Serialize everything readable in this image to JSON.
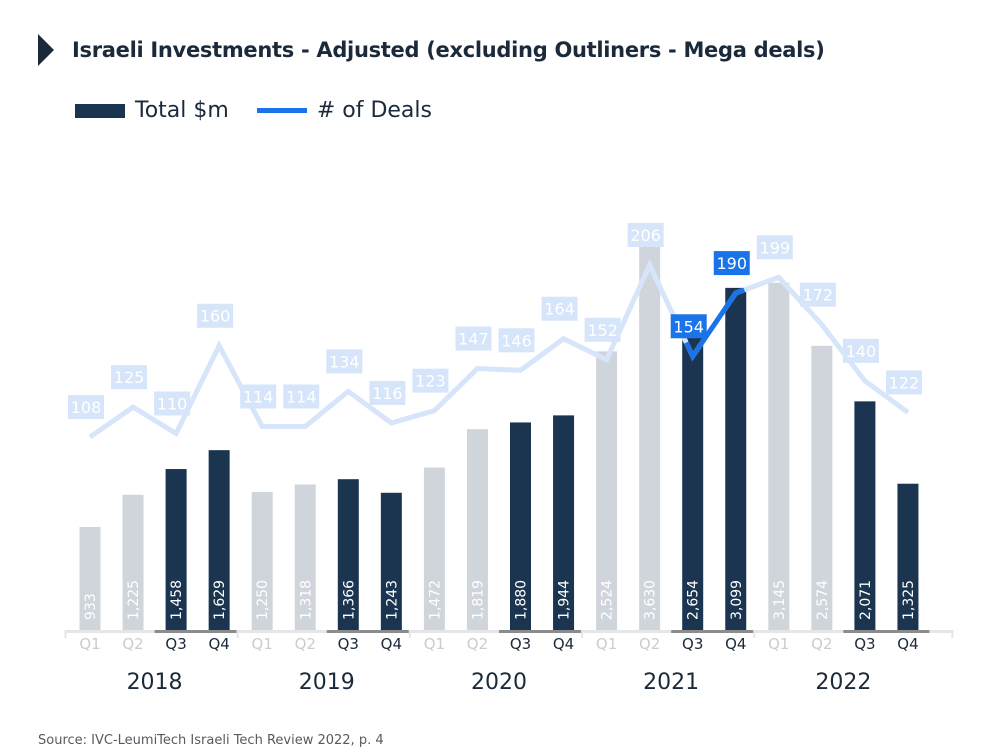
{
  "title": "Israeli Investments - Adjusted (excluding Outliners - Mega deals)",
  "legend": [
    {
      "label": "Total $m",
      "type": "bar",
      "color": "#1b3550"
    },
    {
      "label": "# of Deals",
      "type": "line",
      "color": "#1a73e8"
    }
  ],
  "source": "Source: IVC-LeumiTech Israeli Tech Review 2022, p. 4",
  "colors": {
    "bar_highlight": "#1b3550",
    "bar_muted": "#d0d5dc",
    "line_highlight": "#1a73e8",
    "line_muted": "#d6e5fa",
    "axis_muted": "#e6e6e6",
    "axis_highlight": "#8c8c8c",
    "text_dark": "#1b2a3a",
    "text_muted": "#cccccc"
  },
  "chart_data": {
    "type": "bar",
    "title": "Israeli Investments - Adjusted (excluding Outliners - Mega deals)",
    "xlabel": "",
    "ylabel": "",
    "groups": [
      "2018",
      "2019",
      "2020",
      "2021",
      "2022"
    ],
    "quarters": [
      "Q1",
      "Q2",
      "Q3",
      "Q4"
    ],
    "categories": [
      "2018 Q1",
      "2018 Q2",
      "2018 Q3",
      "2018 Q4",
      "2019 Q1",
      "2019 Q2",
      "2019 Q3",
      "2019 Q4",
      "2020 Q1",
      "2020 Q2",
      "2020 Q3",
      "2020 Q4",
      "2021 Q1",
      "2021 Q2",
      "2021 Q3",
      "2021 Q4",
      "2022 Q1",
      "2022 Q2",
      "2022 Q3",
      "2022 Q4"
    ],
    "series": [
      {
        "name": "Total $m",
        "type": "bar",
        "values": [
          933,
          1225,
          1458,
          1629,
          1250,
          1318,
          1366,
          1243,
          1472,
          1819,
          1880,
          1944,
          2524,
          3630,
          2654,
          3099,
          3145,
          2574,
          2071,
          1325
        ],
        "labels": [
          "933",
          "1,225",
          "1,458",
          "1,629",
          "1,250",
          "1,318",
          "1,366",
          "1,243",
          "1,472",
          "1,819",
          "1,880",
          "1,944",
          "2,524",
          "3,630",
          "2,654",
          "3,099",
          "3,145",
          "2,574",
          "2,071",
          "1,325"
        ]
      },
      {
        "name": "# of Deals",
        "type": "line",
        "values": [
          108,
          125,
          110,
          160,
          114,
          114,
          134,
          116,
          123,
          147,
          146,
          164,
          152,
          206,
          154,
          190,
          199,
          172,
          140,
          122
        ]
      }
    ],
    "highlighted_quarters": [
      "Q3",
      "Q4"
    ],
    "highlighted_line_segment": [
      "2021 Q3",
      "2021 Q4"
    ],
    "grid": false,
    "legend_position": "top-left"
  }
}
